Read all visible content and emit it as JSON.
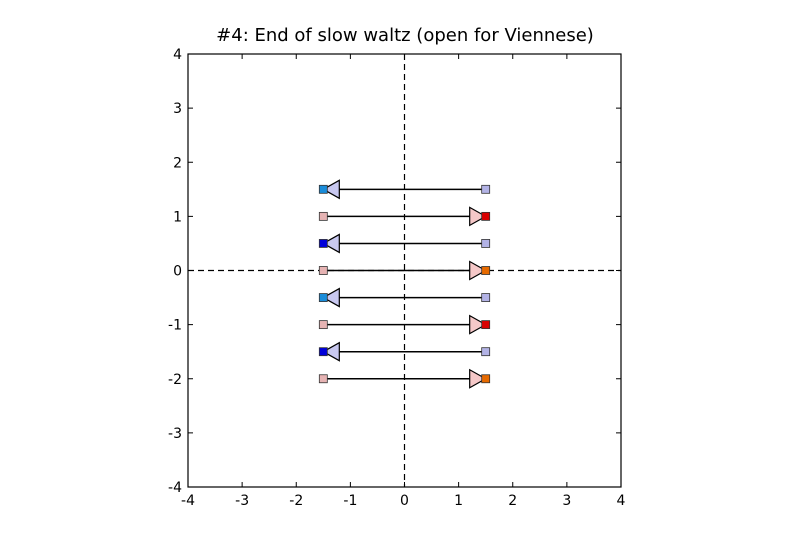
{
  "chart_data": {
    "type": "scatter",
    "title": "#4: End of slow waltz (open for Viennese)",
    "xlim": [
      -4,
      4
    ],
    "ylim": [
      -4,
      4
    ],
    "xticks": [
      "-4",
      "-3",
      "-2",
      "-1",
      "0",
      "1",
      "2",
      "3",
      "4"
    ],
    "yticks": [
      "-4",
      "-3",
      "-2",
      "-1",
      "0",
      "1",
      "2",
      "3",
      "4"
    ],
    "reference_lines": {
      "x": 0,
      "y": 0,
      "style": "dashed"
    },
    "arrows": [
      {
        "x_start": 1.5,
        "x_end": -1.5,
        "y": 1.5,
        "direction": "left",
        "start_color": "#b3b3e6",
        "end_color": "#1a8cd9",
        "head_color": "#c8c8f0"
      },
      {
        "x_start": -1.5,
        "x_end": 1.5,
        "y": 1.0,
        "direction": "right",
        "start_color": "#e6b3b3",
        "end_color": "#d90000",
        "head_color": "#f5c8c8"
      },
      {
        "x_start": 1.5,
        "x_end": -1.5,
        "y": 0.5,
        "direction": "left",
        "start_color": "#b3b3e6",
        "end_color": "#0000d9",
        "head_color": "#c8c8f0"
      },
      {
        "x_start": -1.5,
        "x_end": 1.5,
        "y": 0.0,
        "direction": "right",
        "start_color": "#e6b3b3",
        "end_color": "#e66a00",
        "head_color": "#f5c8c8"
      },
      {
        "x_start": 1.5,
        "x_end": -1.5,
        "y": -0.5,
        "direction": "left",
        "start_color": "#b3b3e6",
        "end_color": "#1a8cd9",
        "head_color": "#c8c8f0"
      },
      {
        "x_start": -1.5,
        "x_end": 1.5,
        "y": -1.0,
        "direction": "right",
        "start_color": "#e6b3b3",
        "end_color": "#d90000",
        "head_color": "#f5c8c8"
      },
      {
        "x_start": 1.5,
        "x_end": -1.5,
        "y": -1.5,
        "direction": "left",
        "start_color": "#b3b3e6",
        "end_color": "#0000d9",
        "head_color": "#c8c8f0"
      },
      {
        "x_start": -1.5,
        "x_end": 1.5,
        "y": -2.0,
        "direction": "right",
        "start_color": "#e6b3b3",
        "end_color": "#e66a00",
        "head_color": "#f5c8c8"
      }
    ]
  }
}
